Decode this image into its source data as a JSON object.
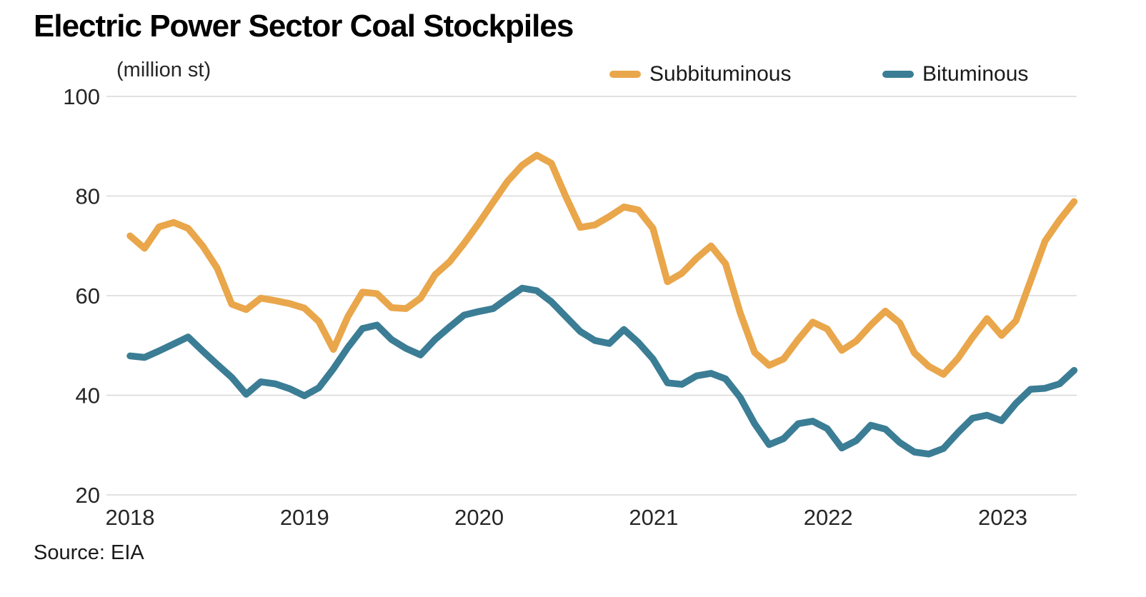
{
  "header": {
    "title": "Electric Power Sector Coal Stockpiles",
    "unit_label": "(million st)",
    "source": "Source: EIA"
  },
  "legend": {
    "items": [
      {
        "label": "Subbituminous",
        "color": "#E9A64A"
      },
      {
        "label": "Bituminous",
        "color": "#3B7D95"
      }
    ]
  },
  "colors": {
    "subbituminous": "#E9A64A",
    "bituminous": "#3B7D95",
    "gridline": "#D8D8D8",
    "tick_text": "#262626",
    "background": "#FFFFFF"
  },
  "chart_data": {
    "type": "line",
    "title": "Electric Power Sector Coal Stockpiles",
    "unit": "million st",
    "frequency": "monthly",
    "x_start": "2018-01",
    "x_end": "2023-06",
    "xticks": [
      "2018",
      "2019",
      "2020",
      "2021",
      "2022",
      "2023"
    ],
    "xtick_month_indexes": [
      0,
      12,
      24,
      36,
      48,
      60
    ],
    "ylim": [
      20,
      100
    ],
    "yticks": [
      100,
      80,
      60,
      40,
      20
    ],
    "grid": "horizontal",
    "legend_position": "top-right",
    "series": [
      {
        "name": "Subbituminous",
        "color": "#E9A64A",
        "values": [
          72,
          69.5,
          73.8,
          74.7,
          73.5,
          70,
          65.5,
          58.3,
          57.2,
          59.5,
          59,
          58.4,
          57.5,
          54.8,
          49.2,
          55.8,
          60.7,
          60.4,
          57.6,
          57.4,
          59.5,
          64.2,
          66.8,
          70.5,
          74.5,
          78.8,
          83,
          86.2,
          88.2,
          86.6,
          79.9,
          73.7,
          74.2,
          75.9,
          77.8,
          77.2,
          73.5,
          62.8,
          64.5,
          67.5,
          70,
          66.4,
          56.6,
          48.6,
          46,
          47.3,
          51.2,
          54.7,
          53.3,
          49,
          50.9,
          54.1,
          56.9,
          54.5,
          48.5,
          45.8,
          44.2,
          47.4,
          51.6,
          55.4,
          52,
          55,
          63,
          71,
          75.2,
          78.9
        ]
      },
      {
        "name": "Bituminous",
        "color": "#3B7D95",
        "values": [
          47.9,
          47.6,
          48.9,
          50.3,
          51.7,
          48.9,
          46.2,
          43.6,
          40.2,
          42.7,
          42.3,
          41.3,
          39.9,
          41.5,
          45.3,
          49.6,
          53.4,
          54.1,
          51.2,
          49.4,
          48.1,
          51.2,
          53.7,
          56.1,
          56.8,
          57.4,
          59.5,
          61.5,
          61,
          58.8,
          55.8,
          52.8,
          51,
          50.4,
          53.2,
          50.6,
          47.3,
          42.5,
          42.2,
          43.9,
          44.4,
          43.3,
          39.6,
          34.3,
          30.1,
          31.3,
          34.3,
          34.8,
          33.3,
          29.4,
          30.9,
          34,
          33.2,
          30.5,
          28.6,
          28.2,
          29.3,
          32.5,
          35.4,
          36,
          34.9,
          38.4,
          41.2,
          41.4,
          42.3,
          45
        ]
      }
    ]
  }
}
